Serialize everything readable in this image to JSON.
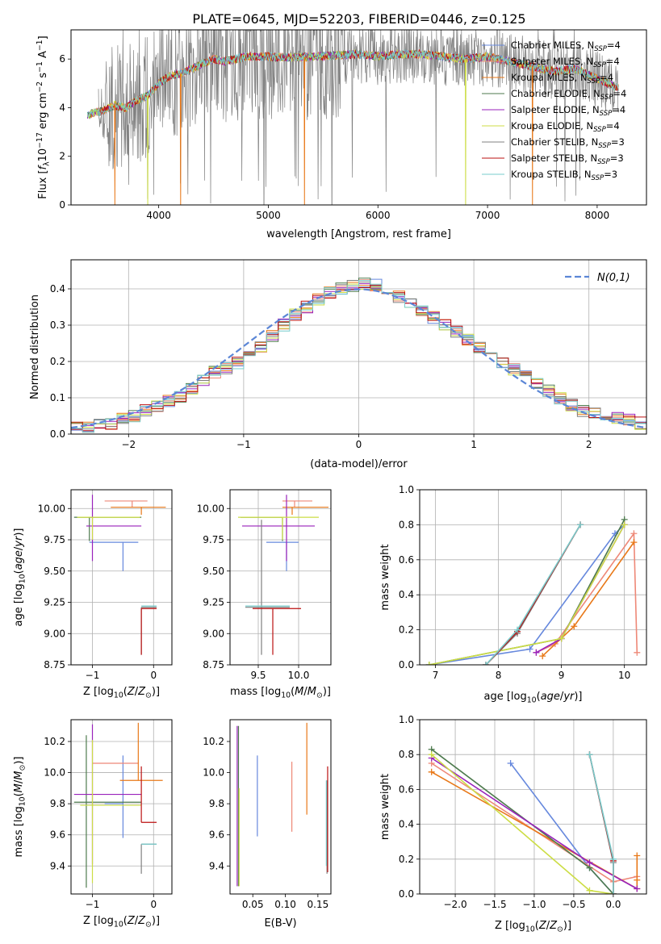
{
  "figure_title": "PLATE=0645, MJD=52203, FIBERID=0446, z=0.125",
  "colors": {
    "chabrier_miles": "#6688dd",
    "salpeter_miles": "#ee8877",
    "kroupa_miles": "#e87818",
    "chabrier_elodie": "#4d7a4d",
    "salpeter_elodie": "#9922bb",
    "kroupa_elodie": "#ccdd44",
    "chabrier_stelib": "#808080",
    "salpeter_stelib": "#bb1111",
    "kroupa_stelib": "#77cccc",
    "gaussian": "#5b86d6"
  },
  "legend_entries": [
    {
      "key": "chabrier_miles",
      "pre": "Chabrier MILES, N",
      "sub": "SSP",
      "post": "=4"
    },
    {
      "key": "salpeter_miles",
      "pre": "Salpeter MILES, N",
      "sub": "SSP",
      "post": "=4"
    },
    {
      "key": "kroupa_miles",
      "pre": "Kroupa MILES, N",
      "sub": "SSP",
      "post": "=4"
    },
    {
      "key": "chabrier_elodie",
      "pre": "Chabrier ELODIE, N",
      "sub": "SSP",
      "post": "=4"
    },
    {
      "key": "salpeter_elodie",
      "pre": "Salpeter ELODIE, N",
      "sub": "SSP",
      "post": "=4"
    },
    {
      "key": "kroupa_elodie",
      "pre": "Kroupa ELODIE, N",
      "sub": "SSP",
      "post": "=4"
    },
    {
      "key": "chabrier_stelib",
      "pre": "Chabrier STELIB, N",
      "sub": "SSP",
      "post": "=3"
    },
    {
      "key": "salpeter_stelib",
      "pre": "Salpeter STELIB, N",
      "sub": "SSP",
      "post": "=3"
    },
    {
      "key": "kroupa_stelib",
      "pre": "Kroupa STELIB, N",
      "sub": "SSP",
      "post": "=3"
    }
  ],
  "chart_data": [
    {
      "id": "spectrum",
      "type": "line",
      "xlabel": "wavelength [Angstrom, rest frame]",
      "ylabel": "Flux [f_λ 10^-17 erg cm^-2 s^-1 A^-1]",
      "xlim": [
        3200,
        8450
      ],
      "ylim": [
        0,
        7.2
      ],
      "xticks": [
        4000,
        5000,
        6000,
        7000,
        8000
      ],
      "yticks": [
        0,
        2,
        4,
        6
      ],
      "grid": false,
      "legend": "right",
      "continuum": {
        "x": [
          3350,
          3500,
          3600,
          3700,
          3800,
          3900,
          4000,
          4100,
          4200,
          4300,
          4400,
          4500,
          4600,
          4800,
          5000,
          5200,
          5400,
          5600,
          5800,
          6000,
          6200,
          6400,
          6600,
          6800,
          7000,
          7200,
          7400,
          7600,
          7800,
          8000,
          8200
        ],
        "y": [
          3.7,
          3.9,
          4.1,
          4.0,
          4.3,
          4.5,
          5.0,
          5.3,
          5.4,
          5.6,
          5.8,
          6.0,
          5.9,
          6.1,
          6.1,
          6.05,
          6.1,
          6.15,
          6.2,
          6.1,
          6.2,
          6.2,
          6.1,
          6.0,
          6.1,
          5.9,
          5.7,
          5.5,
          5.6,
          5.2,
          4.8
        ]
      }
    },
    {
      "id": "residuals",
      "type": "step",
      "xlabel": "(data-model)/error",
      "ylabel": "Normed distribution",
      "xlim": [
        -2.5,
        2.5
      ],
      "ylim": [
        0,
        0.48
      ],
      "xticks": [
        -2,
        -1,
        0,
        1,
        2
      ],
      "yticks": [
        0,
        0.1,
        0.2,
        0.3,
        0.4
      ],
      "grid": true,
      "legend": "top-right",
      "gaussian_label": "N(0,1)",
      "bin_start": -2.5,
      "bin_width": 0.1,
      "base": [
        0.02,
        0.02,
        0.025,
        0.03,
        0.04,
        0.05,
        0.065,
        0.075,
        0.09,
        0.105,
        0.125,
        0.15,
        0.17,
        0.18,
        0.195,
        0.215,
        0.24,
        0.27,
        0.3,
        0.33,
        0.35,
        0.37,
        0.39,
        0.4,
        0.41,
        0.415,
        0.41,
        0.4,
        0.38,
        0.36,
        0.34,
        0.32,
        0.3,
        0.28,
        0.26,
        0.24,
        0.22,
        0.2,
        0.18,
        0.16,
        0.14,
        0.12,
        0.1,
        0.08,
        0.065,
        0.055,
        0.05,
        0.045,
        0.04,
        0.03
      ]
    },
    {
      "id": "age-vs-Z",
      "type": "errorbar",
      "xlabel": "Z [log10(Z/Z⊙)]",
      "ylabel": "age [log10(age/yr)]",
      "xlim": [
        -1.35,
        0.3
      ],
      "ylim": [
        8.75,
        10.15
      ],
      "xticks": [
        -1,
        0
      ],
      "yticks": [
        8.75,
        9.0,
        9.25,
        9.5,
        9.75,
        10.0
      ],
      "grid": true,
      "points": [
        {
          "s": "chabrier_miles",
          "x": -0.5,
          "xe": [
            0.55,
            0.25
          ],
          "y": 9.73,
          "ye": [
            0.23,
            0.0
          ]
        },
        {
          "s": "salpeter_miles",
          "x": -0.35,
          "xe": [
            0.45,
            0.25
          ],
          "y": 10.06,
          "ye": [
            0.05,
            0.0
          ]
        },
        {
          "s": "kroupa_miles",
          "x": -0.2,
          "xe": [
            0.5,
            0.4
          ],
          "y": 10.01,
          "ye": [
            0.06,
            0.0
          ]
        },
        {
          "s": "chabrier_elodie",
          "x": -1.05,
          "xe": [
            0.25,
            0.85
          ],
          "y": 9.93,
          "ye": [
            0.19,
            0.0
          ]
        },
        {
          "s": "salpeter_elodie",
          "x": -1.0,
          "xe": [
            0.1,
            0.8
          ],
          "y": 9.86,
          "ye": [
            0.28,
            0.25
          ]
        },
        {
          "s": "kroupa_elodie",
          "x": -1.0,
          "xe": [
            0.25,
            0.78
          ],
          "y": 9.93,
          "ye": [
            0.18,
            0.0
          ]
        },
        {
          "s": "chabrier_stelib",
          "x": -0.2,
          "xe": [
            0.0,
            0.25
          ],
          "y": 9.21,
          "ye": [
            0.38,
            0.0
          ]
        },
        {
          "s": "salpeter_stelib",
          "x": -0.2,
          "xe": [
            0.0,
            0.25
          ],
          "y": 9.2,
          "ye": [
            0.37,
            0.0
          ]
        },
        {
          "s": "kroupa_stelib",
          "x": -0.2,
          "xe": [
            0.0,
            0.25
          ],
          "y": 9.22,
          "ye": [
            0.0,
            0.0
          ]
        }
      ]
    },
    {
      "id": "age-vs-mass",
      "type": "errorbar",
      "xlabel": "mass [log10(M/M⊙)]",
      "ylabel": "",
      "xlim": [
        9.15,
        10.4
      ],
      "ylim": [
        8.75,
        10.15
      ],
      "xticks": [
        9.5,
        10.0
      ],
      "yticks": [
        8.75,
        9.0,
        9.25,
        9.5,
        9.75,
        10.0
      ],
      "grid": true,
      "points": [
        {
          "s": "chabrier_miles",
          "x": 9.85,
          "xe": [
            0.25,
            0.15
          ],
          "y": 9.73,
          "ye": [
            0.23,
            0.0
          ]
        },
        {
          "s": "salpeter_miles",
          "x": 9.95,
          "xe": [
            0.15,
            0.22
          ],
          "y": 10.06,
          "ye": [
            0.05,
            0.0
          ]
        },
        {
          "s": "kroupa_miles",
          "x": 9.92,
          "xe": [
            0.12,
            0.45
          ],
          "y": 10.01,
          "ye": [
            0.06,
            0.0
          ]
        },
        {
          "s": "chabrier_elodie",
          "x": 9.8,
          "xe": [
            0.52,
            0.0
          ],
          "y": 9.93,
          "ye": [
            0.19,
            0.0
          ]
        },
        {
          "s": "salpeter_elodie",
          "x": 9.85,
          "xe": [
            0.55,
            0.35
          ],
          "y": 9.86,
          "ye": [
            0.28,
            0.25
          ]
        },
        {
          "s": "kroupa_elodie",
          "x": 9.8,
          "xe": [
            0.55,
            0.45
          ],
          "y": 9.93,
          "ye": [
            0.18,
            0.0
          ]
        },
        {
          "s": "chabrier_stelib",
          "x": 9.54,
          "xe": [
            0.2,
            0.35
          ],
          "y": 9.21,
          "ye": [
            0.38,
            0.7
          ]
        },
        {
          "s": "salpeter_stelib",
          "x": 9.68,
          "xe": [
            0.25,
            0.35
          ],
          "y": 9.2,
          "ye": [
            0.37,
            0.0
          ]
        },
        {
          "s": "kroupa_stelib",
          "x": 9.54,
          "xe": [
            0.2,
            0.35
          ],
          "y": 9.22,
          "ye": [
            0.0,
            0.0
          ]
        }
      ]
    },
    {
      "id": "mass-weight-vs-age",
      "type": "line",
      "xlabel": "age [log10(age/yr)]",
      "ylabel": "mass weight",
      "xlim": [
        6.75,
        10.35
      ],
      "ylim": [
        0,
        1.0
      ],
      "xticks": [
        7,
        8,
        9,
        10
      ],
      "yticks": [
        0,
        0.2,
        0.4,
        0.6,
        0.8,
        1.0
      ],
      "grid": true,
      "series": [
        {
          "s": "chabrier_miles",
          "x": [
            6.9,
            8.5,
            9.85,
            10.0
          ],
          "y": [
            0.0,
            0.09,
            0.75,
            0.8
          ]
        },
        {
          "s": "salpeter_miles",
          "x": [
            8.6,
            8.9,
            10.15,
            10.2
          ],
          "y": [
            0.07,
            0.12,
            0.75,
            0.07
          ]
        },
        {
          "s": "kroupa_miles",
          "x": [
            8.7,
            9.2,
            10.15
          ],
          "y": [
            0.05,
            0.22,
            0.7
          ]
        },
        {
          "s": "chabrier_elodie",
          "x": [
            6.9,
            9.0,
            10.0
          ],
          "y": [
            0.0,
            0.15,
            0.83
          ]
        },
        {
          "s": "salpeter_elodie",
          "x": [
            8.6,
            9.0,
            10.0
          ],
          "y": [
            0.07,
            0.15,
            0.8
          ]
        },
        {
          "s": "kroupa_elodie",
          "x": [
            6.9,
            9.0,
            10.0
          ],
          "y": [
            0.0,
            0.15,
            0.8
          ]
        },
        {
          "s": "chabrier_stelib",
          "x": [
            7.8,
            8.3,
            9.3
          ],
          "y": [
            0.0,
            0.18,
            0.8
          ]
        },
        {
          "s": "salpeter_stelib",
          "x": [
            7.8,
            8.3,
            9.3
          ],
          "y": [
            0.0,
            0.19,
            0.8
          ]
        },
        {
          "s": "kroupa_stelib",
          "x": [
            7.8,
            8.3,
            9.3
          ],
          "y": [
            0.0,
            0.2,
            0.8
          ]
        }
      ]
    },
    {
      "id": "mass-vs-Z",
      "type": "errorbar",
      "xlabel": "Z [log10(Z/Z⊙)]",
      "ylabel": "mass [log10(M/M⊙)]",
      "xlim": [
        -1.35,
        0.3
      ],
      "ylim": [
        9.22,
        10.34
      ],
      "xticks": [
        -1,
        0
      ],
      "yticks": [
        9.4,
        9.6,
        9.8,
        10.0,
        10.2
      ],
      "grid": true,
      "points": [
        {
          "s": "chabrier_miles",
          "x": -0.5,
          "xe": [
            0.3,
            0.0
          ],
          "y": 9.8,
          "ye": [
            0.22,
            0.31
          ]
        },
        {
          "s": "salpeter_miles",
          "x": -0.6,
          "xe": [
            0.4,
            0.35
          ],
          "y": 10.06,
          "ye": [
            0.0,
            0.0
          ]
        },
        {
          "s": "kroupa_miles",
          "x": -0.25,
          "xe": [
            0.3,
            0.4
          ],
          "y": 9.95,
          "ye": [
            0.0,
            0.37
          ]
        },
        {
          "s": "chabrier_elodie",
          "x": -1.1,
          "xe": [
            0.2,
            0.9
          ],
          "y": 9.81,
          "ye": [
            0.55,
            0.43
          ]
        },
        {
          "s": "salpeter_elodie",
          "x": -1.0,
          "xe": [
            0.3,
            0.8
          ],
          "y": 9.86,
          "ye": [
            0.45,
            0.45
          ]
        },
        {
          "s": "kroupa_elodie",
          "x": -1.0,
          "xe": [
            0.2,
            0.8
          ],
          "y": 9.79,
          "ye": [
            0.5,
            0.42
          ]
        },
        {
          "s": "chabrier_stelib",
          "x": -0.2,
          "xe": [
            0.0,
            0.25
          ],
          "y": 9.54,
          "ye": [
            0.19,
            0.0
          ]
        },
        {
          "s": "salpeter_stelib",
          "x": -0.2,
          "xe": [
            0.0,
            0.25
          ],
          "y": 9.68,
          "ye": [
            0.0,
            0.36
          ]
        },
        {
          "s": "kroupa_stelib",
          "x": -0.2,
          "xe": [
            0.0,
            0.25
          ],
          "y": 9.54,
          "ye": [
            0.0,
            0.0
          ]
        }
      ]
    },
    {
      "id": "mass-vs-EBV",
      "type": "errorbar",
      "xlabel": "E(B-V)",
      "ylabel": "",
      "xlim": [
        0.015,
        0.17
      ],
      "ylim": [
        9.22,
        10.34
      ],
      "xticks": [
        0.05,
        0.1,
        0.15
      ],
      "yticks": [
        9.4,
        9.6,
        9.8,
        10.0,
        10.2
      ],
      "grid": false,
      "points": [
        {
          "s": "chabrier_miles",
          "x": 0.057,
          "xe": [
            0.0,
            0.0
          ],
          "y": 9.85,
          "ye": [
            0.26,
            0.26
          ]
        },
        {
          "s": "salpeter_miles",
          "x": 0.11,
          "xe": [
            0.0,
            0.0
          ],
          "y": 9.87,
          "ye": [
            0.25,
            0.2
          ]
        },
        {
          "s": "kroupa_miles",
          "x": 0.133,
          "xe": [
            0.0,
            0.0
          ],
          "y": 10.02,
          "ye": [
            0.29,
            0.3
          ]
        },
        {
          "s": "chabrier_elodie",
          "x": 0.028,
          "xe": [
            0.0,
            0.0
          ],
          "y": 9.8,
          "ye": [
            0.53,
            0.5
          ]
        },
        {
          "s": "salpeter_elodie",
          "x": 0.026,
          "xe": [
            0.0,
            0.0
          ],
          "y": 9.8,
          "ye": [
            0.53,
            0.5
          ]
        },
        {
          "s": "kroupa_elodie",
          "x": 0.029,
          "xe": [
            0.0,
            0.0
          ],
          "y": 9.6,
          "ye": [
            0.33,
            0.3
          ]
        },
        {
          "s": "chabrier_stelib",
          "x": 0.164,
          "xe": [
            0.0,
            0.0
          ],
          "y": 9.6,
          "ye": [
            0.25,
            0.35
          ]
        },
        {
          "s": "salpeter_stelib",
          "x": 0.165,
          "xe": [
            0.0,
            0.0
          ],
          "y": 9.7,
          "ye": [
            0.34,
            0.34
          ]
        },
        {
          "s": "kroupa_stelib",
          "x": 0.163,
          "xe": [
            0.0,
            0.0
          ],
          "y": 9.65,
          "ye": [
            0.25,
            0.3
          ]
        }
      ]
    },
    {
      "id": "mass-weight-vs-Z",
      "type": "line",
      "xlabel": "Z [log10(Z/Z⊙)]",
      "ylabel": "mass weight",
      "xlim": [
        -2.45,
        0.42
      ],
      "ylim": [
        0,
        1.0
      ],
      "xticks": [
        -2.0,
        -1.5,
        -1.0,
        -0.5,
        0.0
      ],
      "yticks": [
        0,
        0.2,
        0.4,
        0.6,
        0.8,
        1.0
      ],
      "grid": true,
      "series": [
        {
          "s": "chabrier_miles",
          "x": [
            -1.3,
            -0.3,
            0.0
          ],
          "y": [
            0.75,
            0.15,
            0.0
          ]
        },
        {
          "s": "salpeter_miles",
          "x": [
            -2.3,
            0.0,
            0.3
          ],
          "y": [
            0.75,
            0.07,
            0.1
          ]
        },
        {
          "s": "kroupa_miles",
          "x": [
            -2.3,
            0.3,
            0.3,
            0.3
          ],
          "y": [
            0.7,
            0.03,
            0.22,
            0.08
          ]
        },
        {
          "s": "chabrier_elodie",
          "x": [
            -2.3,
            -0.3,
            0.0
          ],
          "y": [
            0.83,
            0.15,
            0.0
          ]
        },
        {
          "s": "salpeter_elodie",
          "x": [
            -2.3,
            -0.3,
            0.3
          ],
          "y": [
            0.78,
            0.18,
            0.03
          ]
        },
        {
          "s": "kroupa_elodie",
          "x": [
            -2.3,
            -0.3,
            0.0
          ],
          "y": [
            0.8,
            0.02,
            0.0
          ]
        },
        {
          "s": "chabrier_stelib",
          "x": [
            -0.3,
            0.0,
            0.0
          ],
          "y": [
            0.8,
            0.18,
            0.0
          ]
        },
        {
          "s": "salpeter_stelib",
          "x": [
            -0.3,
            0.0,
            0.0
          ],
          "y": [
            0.8,
            0.19,
            0.0
          ]
        },
        {
          "s": "kroupa_stelib",
          "x": [
            -0.3,
            0.0,
            0.0
          ],
          "y": [
            0.8,
            0.2,
            0.0
          ]
        }
      ]
    }
  ]
}
